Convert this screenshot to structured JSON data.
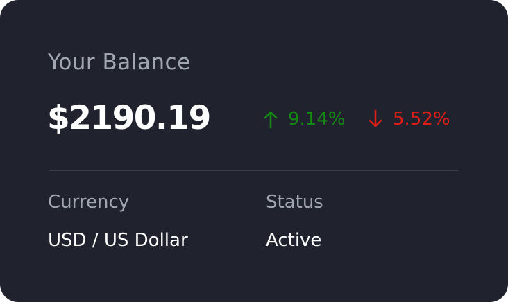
{
  "balance": {
    "title": "Your Balance",
    "amount": "$2190.19",
    "increase": {
      "icon": "arrow-up-icon",
      "value": "9.14%",
      "color": "#138a10"
    },
    "decrease": {
      "icon": "arrow-down-icon",
      "value": "5.52%",
      "color": "#dc1e16"
    }
  },
  "details": {
    "currency": {
      "label": "Currency",
      "value": "USD / US Dollar"
    },
    "status": {
      "label": "Status",
      "value": "Active"
    }
  },
  "colors": {
    "card_background": "#20222e",
    "muted_text": "#a2a6b3",
    "primary_text": "#ffffff"
  }
}
